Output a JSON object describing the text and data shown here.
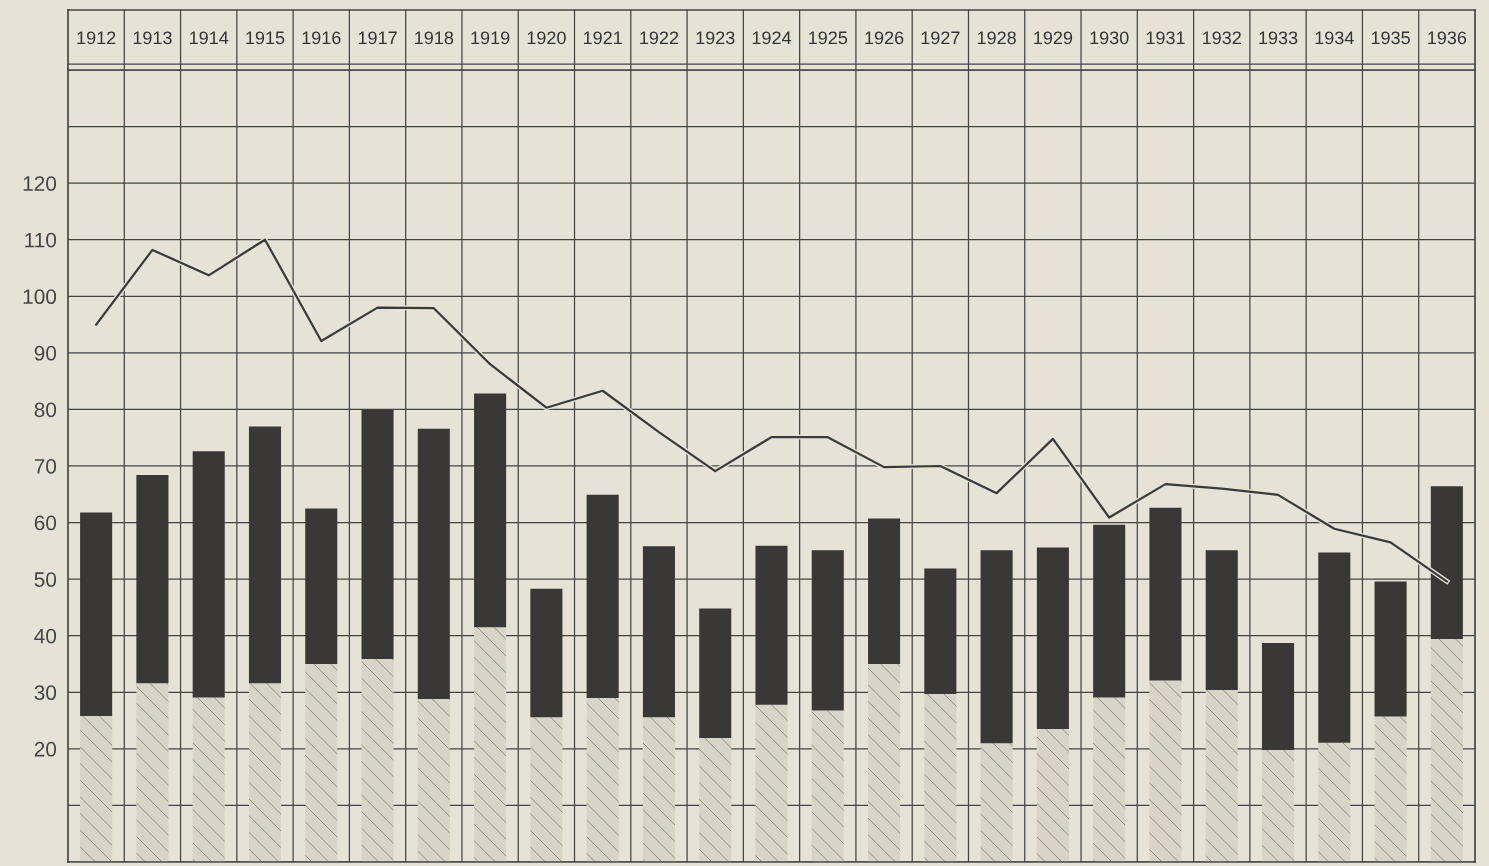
{
  "chart_data": {
    "type": "bar",
    "stacked": true,
    "categories": [
      "1912",
      "1913",
      "1914",
      "1915",
      "1916",
      "1917",
      "1918",
      "1919",
      "1920",
      "1921",
      "1922",
      "1923",
      "1924",
      "1925",
      "1926",
      "1927",
      "1928",
      "1929",
      "1930",
      "1931",
      "1932",
      "1933",
      "1934",
      "1935",
      "1936"
    ],
    "series": [
      {
        "color": "#d8d5c8",
        "values": [
          25.8,
          31.6,
          29.1,
          31.6,
          35.0,
          35.9,
          28.8,
          41.5,
          25.6,
          29.0,
          25.6,
          21.9,
          27.8,
          26.8,
          35.0,
          29.7,
          21.0,
          23.5,
          29.1,
          32.1,
          30.4,
          19.8,
          21.1,
          25.7,
          39.4
        ]
      },
      {
        "color": "#3a3837",
        "values": [
          36.0,
          36.8,
          43.5,
          45.4,
          27.5,
          44.1,
          47.8,
          41.3,
          22.7,
          35.9,
          30.2,
          22.9,
          28.1,
          28.3,
          25.7,
          22.2,
          34.1,
          32.1,
          30.5,
          30.5,
          24.7,
          18.9,
          33.6,
          23.9,
          27.0
        ]
      },
      {
        "type": "line",
        "color": "#3a3a3a",
        "values": [
          95.0,
          108.2,
          103.7,
          110.0,
          92.1,
          98.0,
          97.9,
          88.0,
          80.3,
          83.3,
          76.0,
          69.1,
          75.1,
          75.1,
          69.8,
          70.0,
          65.2,
          74.8,
          60.9,
          66.8,
          66.0,
          64.9,
          58.9,
          56.5,
          49.6
        ]
      }
    ],
    "ylim": [
      0,
      140
    ],
    "yticks": [
      {
        "value": 0,
        "label": null
      },
      {
        "value": 10,
        "label": null
      },
      20,
      30,
      40,
      50,
      60,
      70,
      80,
      90,
      100,
      110,
      120,
      {
        "value": 130,
        "label": null
      },
      {
        "value": 140,
        "label": null
      }
    ],
    "grid": true
  }
}
